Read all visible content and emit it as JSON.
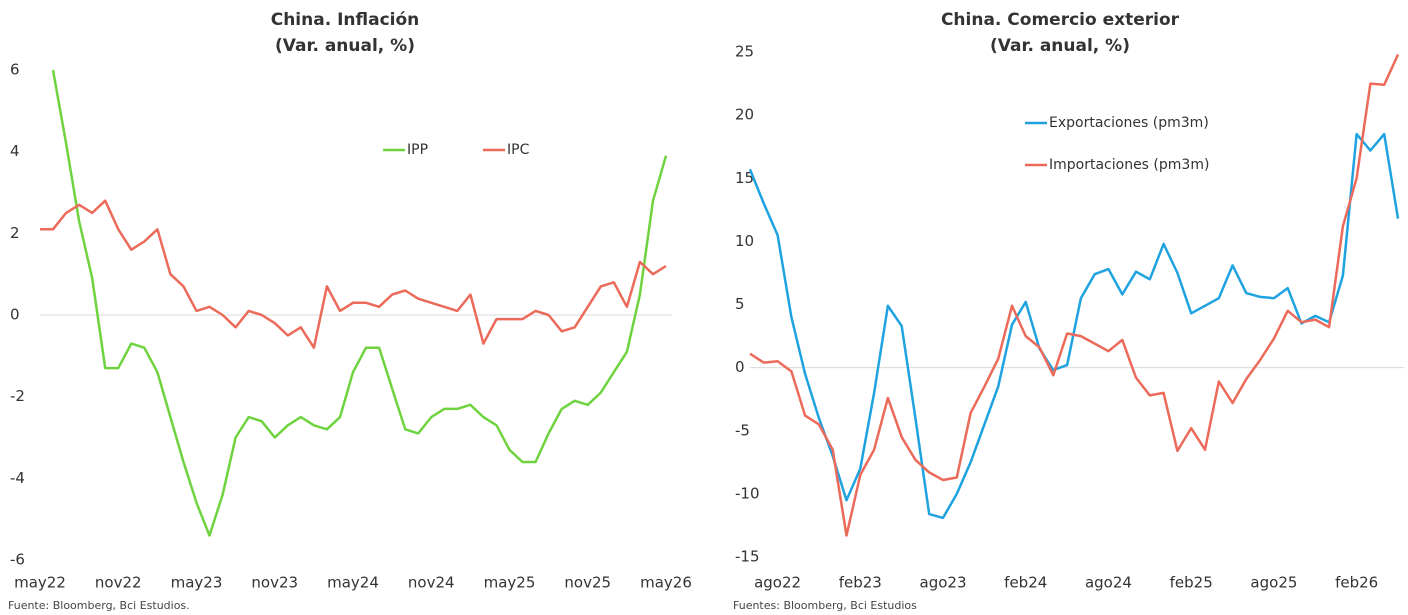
{
  "chart_data": [
    {
      "type": "line",
      "title": "China. Inflación",
      "subtitle": "(Var. anual, %)",
      "categories": [
        "may22",
        null,
        null,
        null,
        null,
        null,
        "nov22",
        null,
        null,
        null,
        null,
        null,
        "may23",
        null,
        null,
        null,
        null,
        null,
        "nov23",
        null,
        null,
        null,
        null,
        null,
        "may24",
        null,
        null,
        null,
        null,
        null,
        "nov24",
        null,
        null,
        null,
        null,
        null,
        "may25",
        null,
        null,
        null,
        null,
        null,
        "nov25",
        null,
        null,
        null,
        null,
        null,
        "may26"
      ],
      "series": [
        {
          "name": "IPP",
          "color": "#6fd33f",
          "values": [
            null,
            6.0,
            4.2,
            2.3,
            0.9,
            -1.3,
            -1.3,
            -0.7,
            -0.8,
            -1.4,
            -2.5,
            -3.6,
            -4.6,
            -5.4,
            -4.4,
            -3.0,
            -2.5,
            -2.6,
            -3.0,
            -2.7,
            -2.5,
            -2.7,
            -2.8,
            -2.5,
            -1.4,
            -0.8,
            -0.8,
            -1.8,
            -2.8,
            -2.9,
            -2.5,
            -2.3,
            -2.3,
            -2.2,
            -2.5,
            -2.7,
            -3.3,
            -3.6,
            -3.6,
            -2.9,
            -2.3,
            -2.1,
            -2.2,
            -1.9,
            -1.4,
            -0.9,
            0.5,
            2.8,
            3.9
          ]
        },
        {
          "name": "IPC",
          "color": "#ec6a5a",
          "values": [
            2.1,
            2.1,
            2.5,
            2.7,
            2.5,
            2.8,
            2.1,
            1.6,
            1.8,
            2.1,
            1.0,
            0.7,
            0.1,
            0.2,
            0.0,
            -0.3,
            0.1,
            0.0,
            -0.2,
            -0.5,
            -0.3,
            -0.8,
            0.7,
            0.1,
            0.3,
            0.3,
            0.2,
            0.5,
            0.6,
            0.4,
            0.3,
            0.2,
            0.1,
            0.5,
            -0.7,
            -0.1,
            -0.1,
            -0.1,
            0.1,
            0.0,
            -0.4,
            -0.3,
            0.2,
            0.7,
            0.8,
            0.2,
            1.3,
            1.0,
            1.2
          ]
        }
      ],
      "ylim": [
        -6,
        6
      ],
      "yticks": [
        -6,
        -4,
        -2,
        0,
        2,
        4,
        6
      ],
      "source": "Fuente: Bloomberg, Bci Estudios."
    },
    {
      "type": "line",
      "title": "China. Comercio exterior",
      "subtitle": "(Var. anual, %)",
      "categories": [
        null,
        null,
        "ago22",
        null,
        null,
        null,
        null,
        null,
        "feb23",
        null,
        null,
        null,
        null,
        null,
        "ago23",
        null,
        null,
        null,
        null,
        null,
        "feb24",
        null,
        null,
        null,
        null,
        null,
        "ago24",
        null,
        null,
        null,
        null,
        null,
        "feb25",
        null,
        null,
        null,
        null,
        null,
        "ago25",
        null,
        null,
        null,
        null,
        null,
        "feb26",
        null,
        null,
        null
      ],
      "series": [
        {
          "name": "Exportaciones (pm3m)",
          "color": "#1fa3e0",
          "values": [
            15.7,
            13,
            10.5,
            4,
            -0.5,
            -4,
            -7,
            -10.5,
            -8,
            -2,
            4.9,
            3.3,
            -4,
            -11.6,
            -11.9,
            -10,
            -7.5,
            -4.5,
            -1.5,
            3.4,
            5.2,
            1.5,
            -0.2,
            0.2,
            5.5,
            7.4,
            7.8,
            5.8,
            7.6,
            7.0,
            9.8,
            7.5,
            4.3,
            4.9,
            5.5,
            8.1,
            5.9,
            5.6,
            5.5,
            6.3,
            3.5,
            4.1,
            3.6,
            7.3,
            18.5,
            17.2,
            18.5,
            11.8
          ]
        },
        {
          "name": "Importaciones (pm3m)",
          "color": "#ec6a5a",
          "values": [
            1.1,
            0.4,
            0.5,
            -0.3,
            -3.8,
            -4.5,
            -6.5,
            -13.3,
            -8.5,
            -6.5,
            -2.4,
            -5.5,
            -7.3,
            -8.3,
            -8.9,
            -8.7,
            -3.6,
            -1.5,
            0.7,
            4.9,
            2.5,
            1.6,
            -0.6,
            2.7,
            2.5,
            1.9,
            1.3,
            2.2,
            -0.8,
            -2.2,
            -2.0,
            -6.6,
            -4.8,
            -6.5,
            -1.1,
            -2.8,
            -0.9,
            0.6,
            2.3,
            4.5,
            3.6,
            3.8,
            3.2,
            11.2,
            15,
            22.5,
            22.4,
            24.8
          ]
        }
      ],
      "ylim": [
        -15,
        25
      ],
      "yticks": [
        -15,
        -10,
        -5,
        0,
        5,
        10,
        15,
        20,
        25
      ],
      "source": "Fuentes: Bloomberg, Bci Estudios"
    }
  ]
}
